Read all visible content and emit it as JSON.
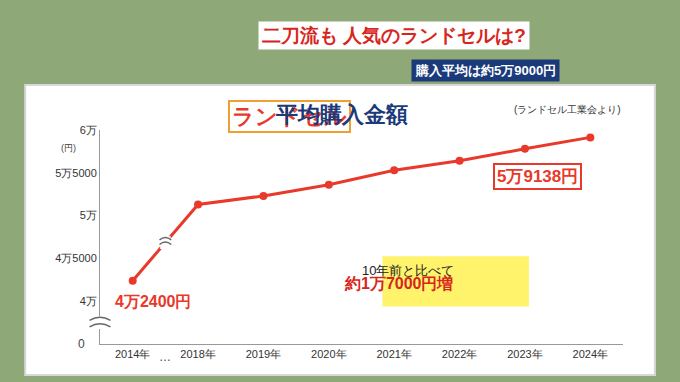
{
  "header": {
    "title": "二刀流も 人気のランドセルは?",
    "subtitle": "購入平均は約5万9000円"
  },
  "chart_data": {
    "type": "line",
    "title": "ランドセル 平均購入金額",
    "subtitle": "(ランドセル工業会より)",
    "y_label": "(円)",
    "categories": [
      "2014年",
      "2018年",
      "2019年",
      "2020年",
      "2021年",
      "2022年",
      "2023年",
      "2024年"
    ],
    "values": [
      42400,
      51300,
      52300,
      53600,
      55300,
      56400,
      57800,
      59138
    ],
    "value_labels": [
      "4万2400円",
      null,
      null,
      null,
      null,
      null,
      null,
      "5万9138円"
    ],
    "data_labels": true,
    "color": "#e8392a",
    "marker": "circle",
    "ylim": [
      35000,
      60000
    ],
    "yticks": [
      {
        "value": 40000,
        "label": "4万"
      },
      {
        "value": 45000,
        "label": "4万5000"
      },
      {
        "value": 50000,
        "label": "5万"
      },
      {
        "value": 55000,
        "label": "5万5000"
      },
      {
        "value": 60000,
        "label": "6万"
      }
    ],
    "grid": false,
    "annotations": [
      "10年前と比べて",
      "約1万7000円増"
    ],
    "axis_breaks": {
      "x": "…",
      "y": "0"
    }
  }
}
